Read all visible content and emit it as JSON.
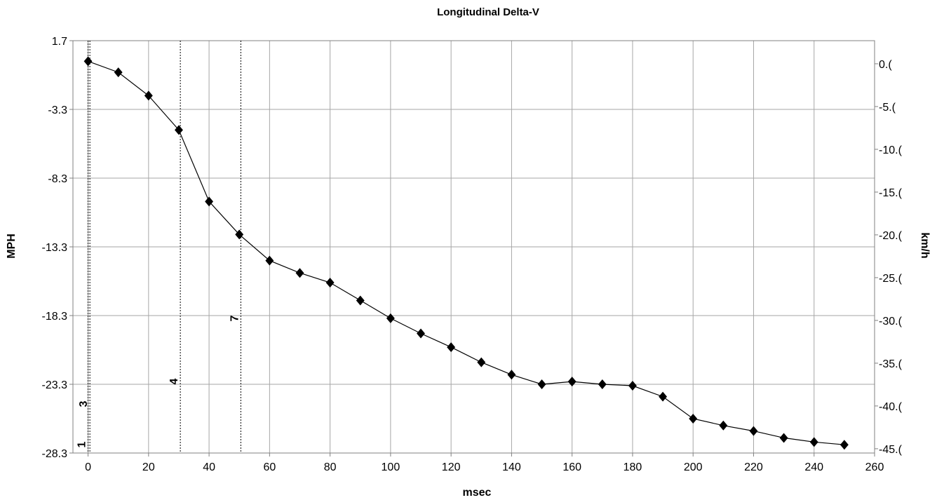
{
  "chart_data": {
    "type": "line",
    "title": "Longitudinal Delta-V",
    "xlabel": "msec",
    "ylabel": "MPH",
    "y2label": "km/h",
    "xlim": [
      -5,
      260
    ],
    "ylim": [
      -28.3,
      1.7
    ],
    "y2lim": [
      -45.5,
      2.7
    ],
    "x_ticks": [
      0,
      20,
      40,
      60,
      80,
      100,
      120,
      140,
      160,
      180,
      200,
      220,
      240,
      260
    ],
    "y_ticks": [
      1.7,
      -3.3,
      -8.3,
      -13.3,
      -18.3,
      -23.3,
      -28.3
    ],
    "y2_ticks": [
      0.0,
      -5.0,
      -10.0,
      -15.0,
      -20.0,
      -25.0,
      -30.0,
      -35.0,
      -40.0,
      -45.0
    ],
    "x2_tick_labels": [
      "0.0",
      "-5.0",
      "-10.0",
      "-15.0",
      "-20.0",
      "-25.0",
      "-30.0",
      "-35.0",
      "-40.0",
      "-45.0"
    ],
    "grid": true,
    "series": [
      {
        "x": [
          0,
          10,
          20,
          30,
          40,
          50,
          60,
          70,
          80,
          90,
          100,
          110,
          120,
          130,
          140,
          150,
          160,
          170,
          180,
          190,
          200,
          210,
          220,
          230,
          240,
          250
        ],
        "values": [
          0.2,
          -0.6,
          -2.3,
          -4.8,
          -10.0,
          -12.4,
          -14.3,
          -15.2,
          -15.9,
          -17.2,
          -18.5,
          -19.6,
          -20.6,
          -21.7,
          -22.6,
          -23.3,
          -23.1,
          -23.3,
          -23.4,
          -24.2,
          -25.8,
          -26.3,
          -26.7,
          -27.2,
          -27.5,
          -27.7
        ]
      }
    ],
    "event_markers": [
      {
        "label": "1",
        "x": 0
      },
      {
        "label": "3",
        "x": 0.6
      },
      {
        "label": "4",
        "x": 30.5
      },
      {
        "label": "7",
        "x": 50.5
      }
    ],
    "x2_tick_labels_displayed": [
      "0.(",
      "-5.(",
      "-10.(",
      "-15.(",
      "-20.(",
      "-25.(",
      "-30.(",
      "-35.(",
      "-40.(",
      "-45.("
    ],
    "marker_style": "black-diamond"
  }
}
